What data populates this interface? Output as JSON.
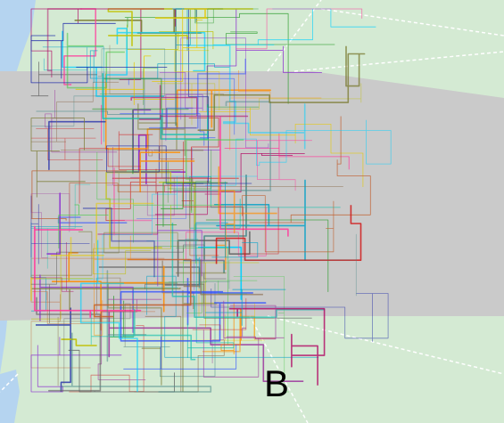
{
  "panel": {
    "label": "B"
  },
  "map": {
    "colors": {
      "water": "#b5d4f0",
      "land": "#d4ead3",
      "study_area": "#cacaca",
      "paths": "#ffffff"
    },
    "track_palette": [
      "#1f2aa8",
      "#d01c1c",
      "#2a9c2a",
      "#8a2bd0",
      "#e6c800",
      "#00a0c8",
      "#ff3c9c",
      "#7a7a30",
      "#4b8a8a",
      "#c06030",
      "#3050ff",
      "#50c850",
      "#a040a0",
      "#ff8c00",
      "#20c0b0",
      "#8a6a4a",
      "#b00060",
      "#606060",
      "#00d0ff",
      "#c0c000"
    ]
  }
}
